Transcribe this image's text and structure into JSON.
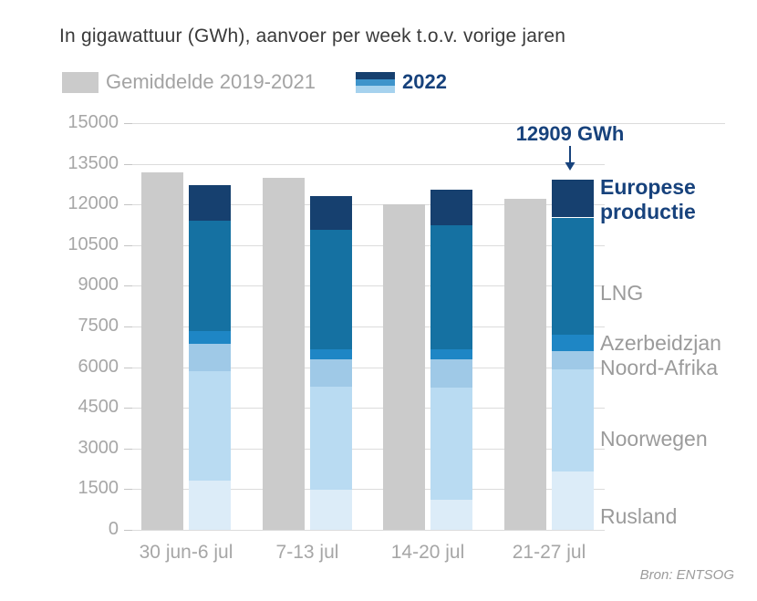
{
  "title": "In gigawattuur (GWh), aanvoer per week t.o.v. vorige jaren",
  "legend": {
    "average_label": "Gemiddelde 2019-2021",
    "year_label": "2022"
  },
  "annotation": {
    "text": "12909 GWh",
    "target_category": "21-27 jul",
    "target_series": "2022"
  },
  "source": "Bron: ENTSOG",
  "colors": {
    "average_bar": "#cbcbcb",
    "rusland": "#dcecf8",
    "noorwegen": "#b9dbf2",
    "noord_afrika": "#9fc9e7",
    "azerbeidzjan": "#1e86c5",
    "lng": "#1571a2",
    "europese_productie": "#16406f",
    "accent_text": "#17427c",
    "axis_text": "#a6a6a6",
    "gridline": "#dcdcdc"
  },
  "chart_data": {
    "type": "bar",
    "title": "In gigawattuur (GWh), aanvoer per week t.o.v. vorige jaren",
    "categories": [
      "30 jun-6 jul",
      "7-13 jul",
      "14-20 jul",
      "21-27 jul"
    ],
    "series": [
      {
        "name": "Gemiddelde 2019-2021",
        "role": "average",
        "color": "#cbcbcb",
        "values": [
          13170,
          13000,
          12000,
          12200
        ]
      },
      {
        "name": "2022",
        "role": "stacked",
        "totals": [
          12720,
          12300,
          12530,
          12909
        ],
        "segments": [
          {
            "label": "Rusland",
            "color": "#dcecf8",
            "values": [
              1830,
              1490,
              1100,
              2149
            ]
          },
          {
            "label": "Noorwegen",
            "color": "#b9dbf2",
            "values": [
              4030,
              3780,
              4150,
              3760
            ]
          },
          {
            "label": "Noord-Afrika",
            "color": "#9fc9e7",
            "values": [
              990,
              1010,
              1030,
              670
            ]
          },
          {
            "label": "Azerbeidzjan",
            "color": "#1e86c5",
            "values": [
              470,
              390,
              390,
              630
            ]
          },
          {
            "label": "LNG",
            "color": "#1571a2",
            "values": [
              4090,
              4400,
              4570,
              4310
            ]
          },
          {
            "label": "Europese productie",
            "color": "#16406f",
            "values": [
              1310,
              1230,
              1290,
              1390
            ]
          }
        ]
      }
    ],
    "xlabel": "",
    "ylabel": "GWh",
    "ylim": [
      0,
      15000
    ],
    "yticks": [
      0,
      1500,
      3000,
      4500,
      6000,
      7500,
      9000,
      10500,
      12000,
      13500,
      15000
    ],
    "grid": true,
    "legend_position": "top"
  }
}
